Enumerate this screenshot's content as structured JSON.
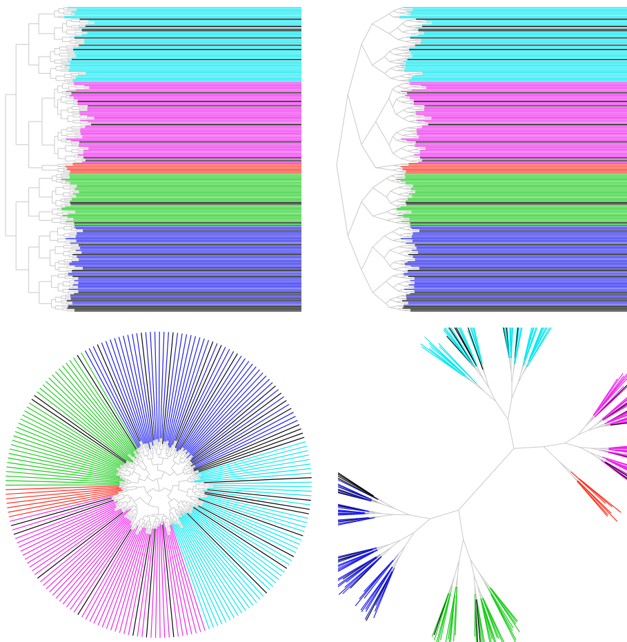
{
  "figure": {
    "panels": [
      {
        "id": "rectangular",
        "layout": "rectangular-dendrogram"
      },
      {
        "id": "slanted",
        "layout": "slanted-dendrogram"
      },
      {
        "id": "circular",
        "layout": "circular-tree"
      },
      {
        "id": "unrooted",
        "layout": "unrooted-tree"
      }
    ],
    "clades": [
      {
        "name": "cyan",
        "color": "#00e8f0",
        "tips": 52
      },
      {
        "name": "magenta",
        "color": "#ee22ee",
        "tips": 56
      },
      {
        "name": "red",
        "color": "#ff2a1a",
        "tips": 7
      },
      {
        "name": "green",
        "color": "#18cc18",
        "tips": 36
      },
      {
        "name": "blue",
        "color": "#1a1aee",
        "tips": 60
      }
    ],
    "unassigned_color": "#000000",
    "branch_color": "#c8c8c8"
  }
}
